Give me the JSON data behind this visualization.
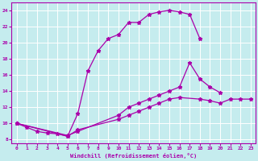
{
  "xlabel": "Windchill (Refroidissement éolien,°C)",
  "bg_color": "#c5ecee",
  "line_color": "#aa00aa",
  "grid_color": "#ffffff",
  "xlim": [
    -0.5,
    23.5
  ],
  "ylim": [
    7.5,
    25.0
  ],
  "yticks": [
    8,
    10,
    12,
    14,
    16,
    18,
    20,
    22,
    24
  ],
  "xticks": [
    0,
    1,
    2,
    3,
    4,
    5,
    6,
    7,
    8,
    9,
    10,
    11,
    12,
    13,
    14,
    15,
    16,
    17,
    18,
    19,
    20,
    21,
    22,
    23
  ],
  "line1_x": [
    0,
    1,
    2,
    3,
    4,
    5,
    6,
    7,
    8,
    9,
    10,
    11,
    12,
    13,
    14,
    15,
    16,
    17,
    18
  ],
  "line1_y": [
    10.0,
    9.5,
    9.0,
    8.8,
    8.7,
    8.4,
    11.2,
    16.5,
    19.0,
    20.5,
    21.0,
    22.5,
    22.5,
    23.5,
    23.8,
    24.0,
    23.8,
    23.5,
    20.5
  ],
  "line2_x": [
    0,
    5,
    6,
    10,
    11,
    12,
    13,
    14,
    15,
    16,
    17,
    18,
    19,
    20
  ],
  "line2_y": [
    10.0,
    8.5,
    9.0,
    11.0,
    12.0,
    12.5,
    13.0,
    13.5,
    14.0,
    14.5,
    17.5,
    15.5,
    14.5,
    13.8
  ],
  "line3_x": [
    0,
    5,
    6,
    10,
    11,
    12,
    13,
    14,
    15,
    16,
    18,
    19,
    20,
    21,
    22,
    23
  ],
  "line3_y": [
    10.0,
    8.4,
    9.2,
    10.5,
    11.0,
    11.5,
    12.0,
    12.5,
    13.0,
    13.2,
    13.0,
    12.8,
    12.5,
    13.0,
    13.0,
    13.0
  ]
}
